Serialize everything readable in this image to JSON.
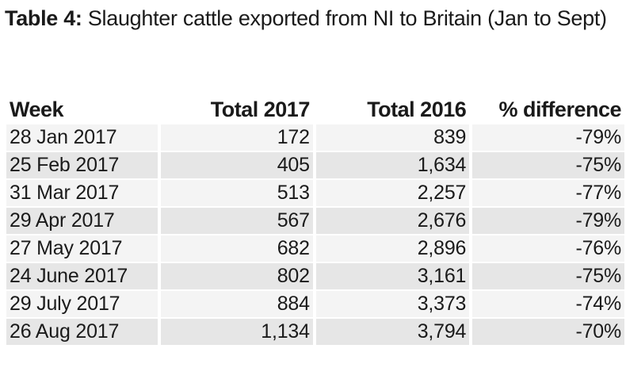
{
  "title": {
    "label": "Table 4:",
    "text": "Slaughter cattle exported from NI to Britain (Jan to Sept)"
  },
  "table": {
    "headers": [
      "Week",
      "Total 2017",
      "Total 2016",
      "% difference"
    ],
    "rows": [
      [
        "28 Jan 2017",
        "172",
        "839",
        "-79%"
      ],
      [
        "25 Feb 2017",
        "405",
        "1,634",
        "-75%"
      ],
      [
        "31 Mar 2017",
        "513",
        "2,257",
        "-77%"
      ],
      [
        "29 Apr 2017",
        "567",
        "2,676",
        "-79%"
      ],
      [
        "27 May 2017",
        "682",
        "2,896",
        "-76%"
      ],
      [
        "24 June 2017",
        "802",
        "3,161",
        "-75%"
      ],
      [
        "29 July 2017",
        "884",
        "3,373",
        "-74%"
      ],
      [
        "26 Aug 2017",
        "1,134",
        "3,794",
        "-70%"
      ]
    ]
  },
  "colors": {
    "row_light": "#f4f4f4",
    "row_dark": "#e6e6e6",
    "text": "#1a1a1a"
  }
}
